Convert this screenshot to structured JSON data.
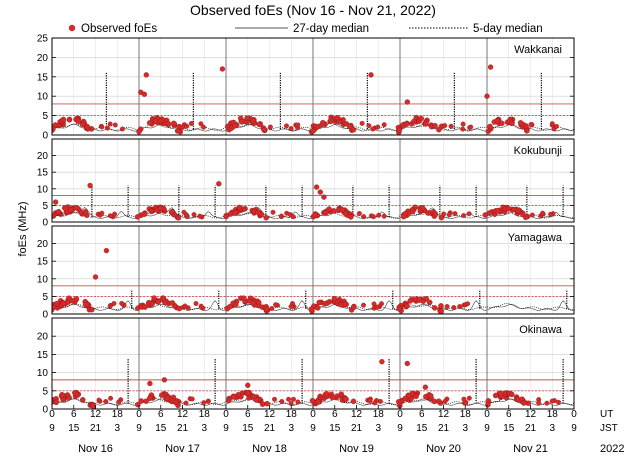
{
  "chart_data": {
    "type": "scatter",
    "title": "Observed foEs (Nov 16 - Nov 21, 2022)",
    "ylabel": "foEs (MHz)",
    "ylim": [
      0,
      25
    ],
    "yticks": [
      "0",
      "5",
      "10",
      "15",
      "20",
      "25"
    ],
    "legend": {
      "observed": "Observed foEs",
      "median27": "27-day median",
      "median5": "5-day median"
    },
    "colors": {
      "observed": "#d42a2a",
      "hline": "#c85050",
      "grid": "#cccccc"
    },
    "x_hours_ut": [
      0,
      144
    ],
    "reference_lines_mhz": [
      5,
      8
    ],
    "stations": [
      {
        "name": "Wakkanai",
        "spikes": [
          {
            "h": 15,
            "v": 16
          },
          {
            "h": 39,
            "v": 16
          },
          {
            "h": 63,
            "v": 16
          },
          {
            "h": 87,
            "v": 16
          },
          {
            "h": 111,
            "v": 16
          },
          {
            "h": 135,
            "v": 16
          }
        ],
        "outliers": [
          {
            "h": 24.5,
            "v": 11
          },
          {
            "h": 25.5,
            "v": 10.5
          },
          {
            "h": 26,
            "v": 15.5
          },
          {
            "h": 47,
            "v": 17
          },
          {
            "h": 88,
            "v": 15.5
          },
          {
            "h": 98,
            "v": 8.5
          },
          {
            "h": 120,
            "v": 10
          },
          {
            "h": 121,
            "v": 17.5
          }
        ]
      },
      {
        "name": "Kokubunji",
        "spikes": [
          {
            "h": 11,
            "v": 11
          },
          {
            "h": 21,
            "v": 11
          },
          {
            "h": 35,
            "v": 11
          },
          {
            "h": 45,
            "v": 11
          },
          {
            "h": 59,
            "v": 11
          },
          {
            "h": 69,
            "v": 11
          },
          {
            "h": 83,
            "v": 11
          },
          {
            "h": 93,
            "v": 11
          },
          {
            "h": 107,
            "v": 11
          },
          {
            "h": 117,
            "v": 11
          },
          {
            "h": 131,
            "v": 11
          },
          {
            "h": 141,
            "v": 11
          }
        ],
        "outliers": [
          {
            "h": 1,
            "v": 6
          },
          {
            "h": 10.5,
            "v": 11
          },
          {
            "h": 46,
            "v": 11.5
          },
          {
            "h": 73,
            "v": 10.5
          },
          {
            "h": 74,
            "v": 9
          },
          {
            "h": 75,
            "v": 7.5
          }
        ]
      },
      {
        "name": "Yamagawa",
        "spikes": [
          {
            "h": 22,
            "v": 7
          },
          {
            "h": 46,
            "v": 7
          },
          {
            "h": 70,
            "v": 7
          },
          {
            "h": 94,
            "v": 7
          },
          {
            "h": 118,
            "v": 7
          },
          {
            "h": 142,
            "v": 7
          }
        ],
        "outliers": [
          {
            "h": 12,
            "v": 10.5
          },
          {
            "h": 15,
            "v": 18
          }
        ]
      },
      {
        "name": "Okinawa",
        "spikes": [
          {
            "h": 21,
            "v": 14
          },
          {
            "h": 45,
            "v": 14
          },
          {
            "h": 69,
            "v": 14
          },
          {
            "h": 93,
            "v": 14
          },
          {
            "h": 117,
            "v": 14
          },
          {
            "h": 141,
            "v": 14
          }
        ],
        "outliers": [
          {
            "h": 27,
            "v": 7
          },
          {
            "h": 31,
            "v": 8
          },
          {
            "h": 54,
            "v": 6.5
          },
          {
            "h": 91,
            "v": 13
          },
          {
            "h": 98,
            "v": 12.5
          },
          {
            "h": 103,
            "v": 6
          }
        ]
      }
    ],
    "x_rows": {
      "ut": {
        "label": "UT",
        "ticks": [
          "0",
          "6",
          "12",
          "18",
          "0",
          "6",
          "12",
          "18",
          "0",
          "6",
          "12",
          "18",
          "0",
          "6",
          "12",
          "18",
          "0",
          "6",
          "12",
          "18",
          "0",
          "6",
          "12",
          "18",
          "0"
        ]
      },
      "jst": {
        "label": "JST",
        "ticks": [
          "9",
          "15",
          "21",
          "3",
          "9",
          "15",
          "21",
          "3",
          "9",
          "15",
          "21",
          "3",
          "9",
          "15",
          "21",
          "3",
          "9",
          "15",
          "21",
          "3",
          "9",
          "15",
          "21",
          "3",
          "9"
        ]
      }
    },
    "days": [
      "Nov 16",
      "Nov 17",
      "Nov 18",
      "Nov 19",
      "Nov 20",
      "Nov 21"
    ],
    "year": "2022"
  }
}
